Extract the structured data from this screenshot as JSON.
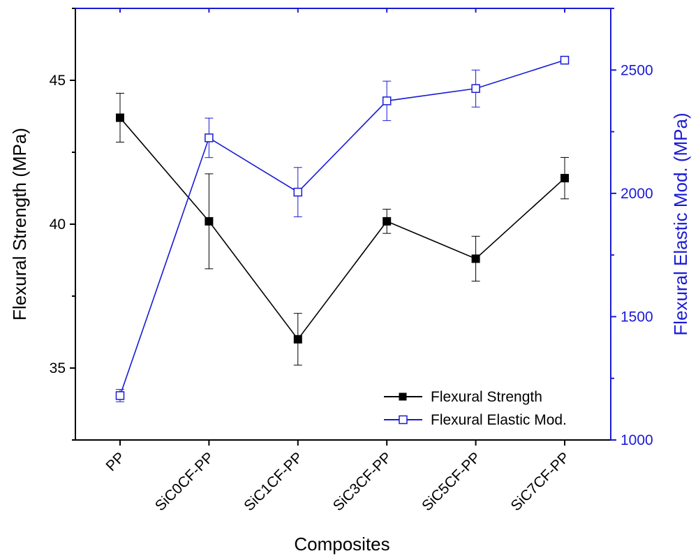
{
  "chart_data": {
    "type": "line",
    "categories": [
      "PP",
      "SiC0CF-PP",
      "SiC1CF-PP",
      "SiC3CF-PP",
      "SiC5CF-PP",
      "SiC7CF-PP"
    ],
    "xlabel": "Composites",
    "ylabel": "Flexural Strength (MPa)",
    "y2label": "Flexural Elastic Mod. (MPa)",
    "ylim": [
      32.5,
      47.5
    ],
    "y2lim": [
      1000,
      2750
    ],
    "yticks": [
      35,
      40,
      45
    ],
    "y2ticks": [
      1000,
      1500,
      2000,
      2500
    ],
    "grid": false,
    "legend_position": "bottom-right",
    "series": [
      {
        "name": "Flexural Strength",
        "axis": "left",
        "color": "#000000",
        "marker": "filled-square",
        "values": [
          43.7,
          40.1,
          36.0,
          40.1,
          38.8,
          41.6
        ],
        "errors": [
          0.85,
          1.65,
          0.9,
          0.42,
          0.78,
          0.72
        ]
      },
      {
        "name": "Flexural Elastic Mod.",
        "axis": "right",
        "color": "#1a1ad6",
        "marker": "open-square",
        "values": [
          1180,
          2225,
          2005,
          2375,
          2425,
          2540
        ],
        "errors": [
          25,
          80,
          100,
          80,
          75,
          0
        ]
      }
    ]
  }
}
